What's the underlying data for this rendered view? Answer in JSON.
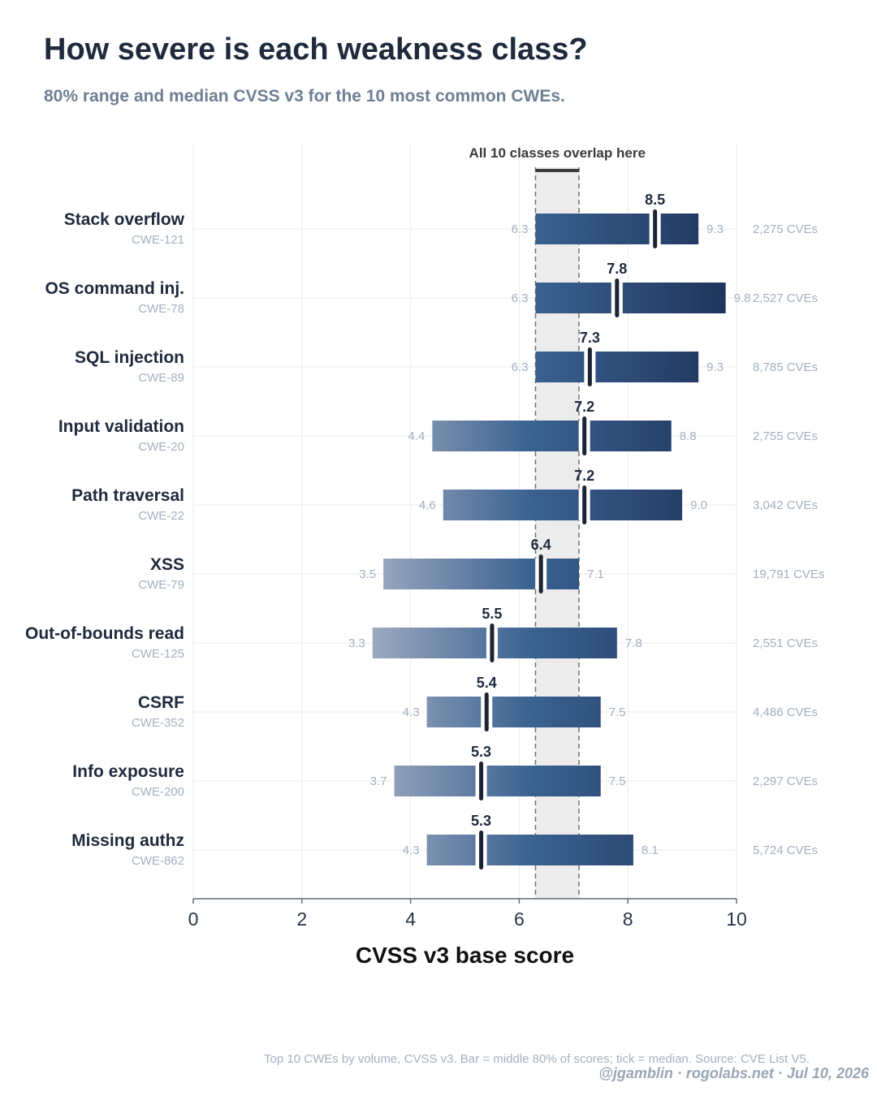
{
  "title": "How severe is each weakness class?",
  "subtitle": "80% range and median CVSS v3 for the 10 most common CWEs.",
  "caption": "Top 10 CWEs by volume, CVSS v3. Bar = middle 80% of scores; tick = median. Source: CVE List V5.",
  "credit": "@jgamblin  ·  rogolabs.net  ·  Jul 10, 2026",
  "chart_data": {
    "type": "range-bar",
    "xlabel": "CVSS v3 base score",
    "xlim": [
      0,
      10
    ],
    "xticks": [
      0,
      2,
      4,
      6,
      8,
      10
    ],
    "grid": "vertical gridlines at ticks",
    "overlap_band": {
      "from": 6.3,
      "to": 7.1,
      "label": "All 10 classes overlap here"
    },
    "rows": [
      {
        "name": "Stack overflow",
        "cwe": "CWE-121",
        "low": 6.3,
        "high": 9.3,
        "median": 8.5,
        "low_label": "6.3",
        "high_label": "9.3",
        "median_label": "8.5",
        "count_label": "2,275 CVEs"
      },
      {
        "name": "OS command inj.",
        "cwe": "CWE-78",
        "low": 6.3,
        "high": 9.8,
        "median": 7.8,
        "low_label": "6.3",
        "high_label": "9.8",
        "median_label": "7.8",
        "count_label": "2,527 CVEs"
      },
      {
        "name": "SQL injection",
        "cwe": "CWE-89",
        "low": 6.3,
        "high": 9.3,
        "median": 7.3,
        "low_label": "6.3",
        "high_label": "9.3",
        "median_label": "7.3",
        "count_label": "8,785 CVEs"
      },
      {
        "name": "Input validation",
        "cwe": "CWE-20",
        "low": 4.4,
        "high": 8.8,
        "median": 7.2,
        "low_label": "4.4",
        "high_label": "8.8",
        "median_label": "7.2",
        "count_label": "2,755 CVEs"
      },
      {
        "name": "Path traversal",
        "cwe": "CWE-22",
        "low": 4.6,
        "high": 9.0,
        "median": 7.2,
        "low_label": "4.6",
        "high_label": "9.0",
        "median_label": "7.2",
        "count_label": "3,042 CVEs"
      },
      {
        "name": "XSS",
        "cwe": "CWE-79",
        "low": 3.5,
        "high": 7.1,
        "median": 6.4,
        "low_label": "3.5",
        "high_label": "7.1",
        "median_label": "6.4",
        "count_label": "19,791 CVEs"
      },
      {
        "name": "Out-of-bounds read",
        "cwe": "CWE-125",
        "low": 3.3,
        "high": 7.8,
        "median": 5.5,
        "low_label": "3.3",
        "high_label": "7.8",
        "median_label": "5.5",
        "count_label": "2,551 CVEs"
      },
      {
        "name": "CSRF",
        "cwe": "CWE-352",
        "low": 4.3,
        "high": 7.5,
        "median": 5.4,
        "low_label": "4.3",
        "high_label": "7.5",
        "median_label": "5.4",
        "count_label": "4,486 CVEs"
      },
      {
        "name": "Info exposure",
        "cwe": "CWE-200",
        "low": 3.7,
        "high": 7.5,
        "median": 5.3,
        "low_label": "3.7",
        "high_label": "7.5",
        "median_label": "5.3",
        "count_label": "2,297 CVEs"
      },
      {
        "name": "Missing authz",
        "cwe": "CWE-862",
        "low": 4.3,
        "high": 8.1,
        "median": 5.3,
        "low_label": "4.3",
        "high_label": "8.1",
        "median_label": "5.3",
        "count_label": "5,724 CVEs"
      }
    ]
  },
  "colors": {
    "bar_light": "#9aa8bf",
    "bar_mid": "#2f5a8a",
    "bar_dark": "#1e365c",
    "median_tick": "#1c2433",
    "band": "#ececec",
    "band_edge": "#707070",
    "text_dark": "#1f2a3c",
    "text_muted": "#8e9cb0"
  }
}
